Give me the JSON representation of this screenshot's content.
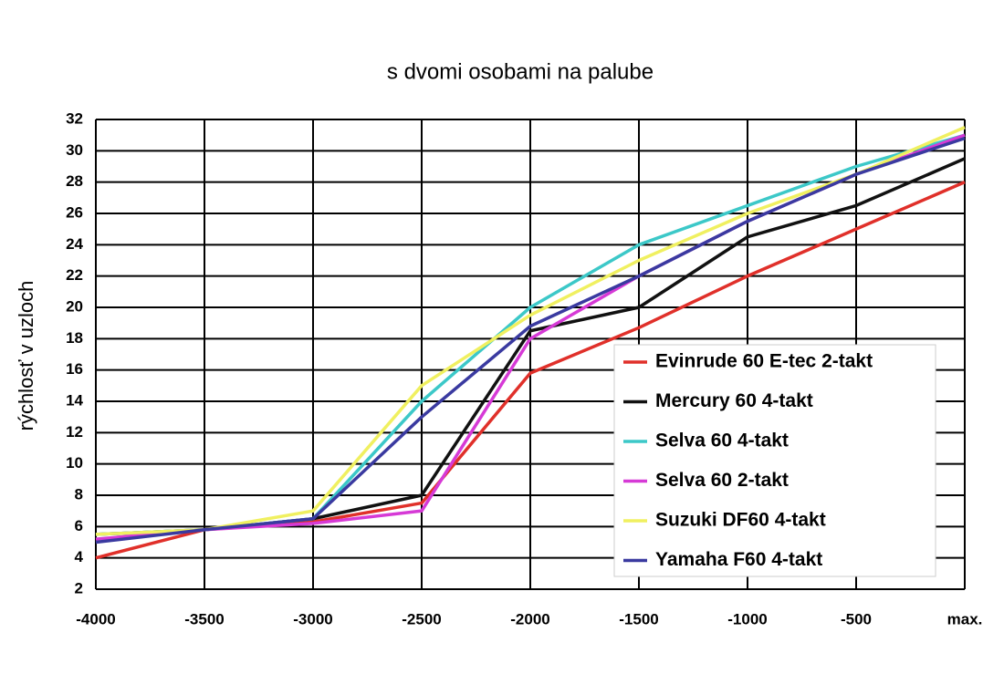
{
  "chart_data": {
    "type": "line",
    "title": "s dvomi osobami na palube",
    "y_label": "rýchlosť v uzloch",
    "x": [
      -4000,
      -3500,
      -3000,
      -2500,
      -2000,
      -1500,
      -1000,
      -500,
      0
    ],
    "xlim": [
      -4000,
      0
    ],
    "xticks": [
      -4000,
      -3500,
      -3000,
      -2500,
      -2000,
      -1500,
      -1000,
      -500,
      {
        "value": 0,
        "label": "max."
      }
    ],
    "ylim": [
      2,
      32
    ],
    "yticks": [
      2,
      4,
      6,
      8,
      10,
      12,
      14,
      16,
      18,
      20,
      22,
      24,
      26,
      28,
      30,
      32
    ],
    "grid": true,
    "legend": "lower right",
    "series": [
      {
        "name": "Evinrude 60 E-tec 2-takt",
        "color": "#e0302a",
        "values": [
          4,
          5.8,
          6.3,
          7.5,
          15.8,
          18.7,
          22,
          25,
          28
        ]
      },
      {
        "name": "Mercury 60 4-takt",
        "color": "#111111",
        "values": [
          5.5,
          5.8,
          6.5,
          8,
          18.5,
          20,
          24.5,
          26.5,
          29.5
        ]
      },
      {
        "name": "Selva 60 4-takt",
        "color": "#3cc8c8",
        "values": [
          5.5,
          5.8,
          6.5,
          14,
          20,
          24,
          26.5,
          29,
          31
        ]
      },
      {
        "name": "Selva 60 2-takt",
        "color": "#d63ad6",
        "values": [
          5.2,
          5.8,
          6.2,
          7,
          18,
          22,
          25.5,
          28.5,
          31
        ]
      },
      {
        "name": "Suzuki DF60 4-takt",
        "color": "#f0f060",
        "values": [
          5.5,
          5.8,
          7,
          15,
          19.5,
          23,
          26,
          28.5,
          31.5
        ]
      },
      {
        "name": "Yamaha F60 4-takt",
        "color": "#3a3aa0",
        "values": [
          5,
          5.8,
          6.5,
          13,
          18.8,
          22,
          25.5,
          28.5,
          30.8
        ]
      }
    ]
  }
}
